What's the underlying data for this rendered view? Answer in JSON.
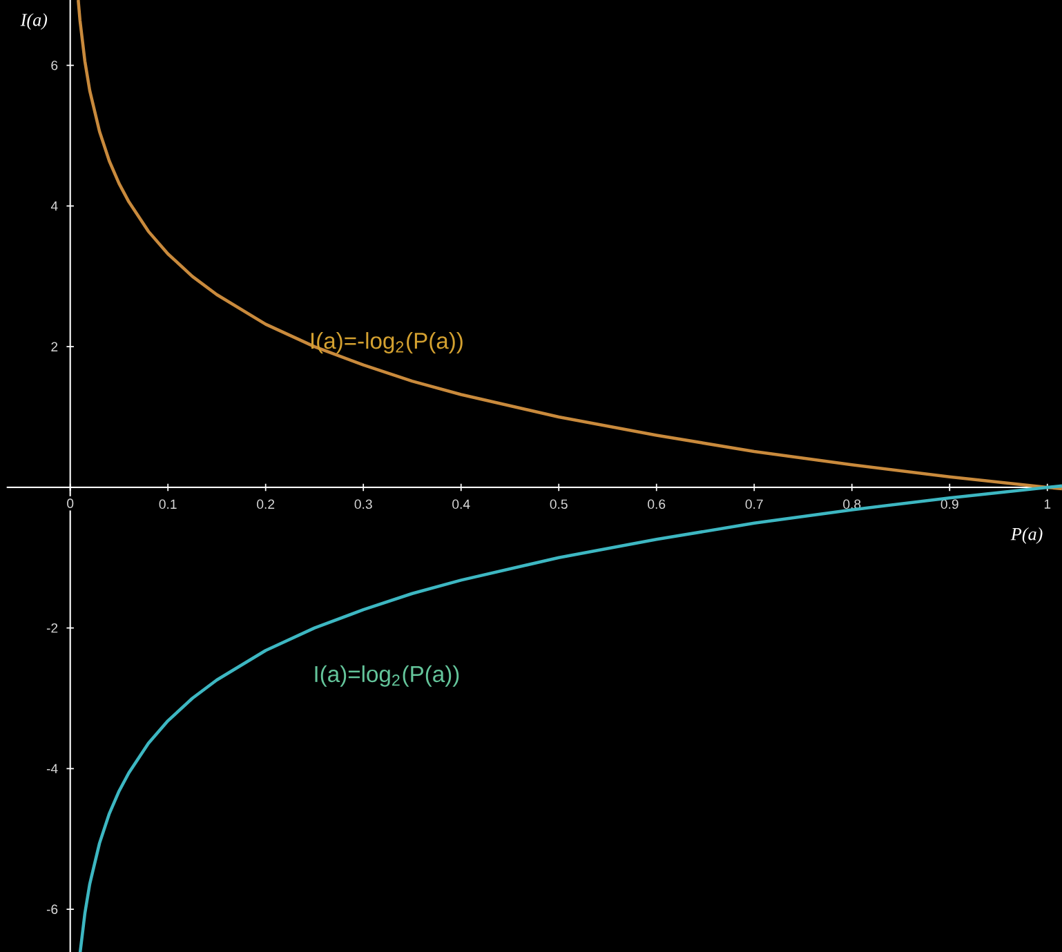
{
  "chart_data": {
    "type": "line",
    "xlabel": "P(a)",
    "ylabel": "I(a)",
    "xlim": [
      -0.065,
      1.015
    ],
    "ylim": [
      -6.61,
      6.93
    ],
    "xticks": [
      0,
      0.1,
      0.2,
      0.3,
      0.4,
      0.5,
      0.6,
      0.7,
      0.8,
      0.9,
      1
    ],
    "yticks": [
      -6,
      -4,
      -2,
      2,
      4,
      6
    ],
    "series": [
      {
        "color": "#c98a3c",
        "x": [
          0.0082,
          0.01,
          0.015,
          0.02,
          0.03,
          0.04,
          0.05,
          0.06,
          0.08,
          0.1,
          0.125,
          0.15,
          0.2,
          0.25,
          0.3,
          0.35,
          0.4,
          0.5,
          0.6,
          0.7,
          0.8,
          0.9,
          1,
          1.015
        ],
        "values": [
          6.93,
          6.64,
          6.06,
          5.64,
          5.06,
          4.64,
          4.32,
          4.06,
          3.64,
          3.32,
          3,
          2.74,
          2.32,
          2,
          1.74,
          1.51,
          1.32,
          1,
          0.74,
          0.51,
          0.32,
          0.15,
          0,
          -0.02
        ]
      },
      {
        "color": "#3db7c2",
        "x": [
          0.0102,
          0.015,
          0.02,
          0.03,
          0.04,
          0.05,
          0.06,
          0.08,
          0.1,
          0.125,
          0.15,
          0.2,
          0.25,
          0.3,
          0.35,
          0.4,
          0.5,
          0.6,
          0.7,
          0.8,
          0.9,
          1,
          1.015
        ],
        "values": [
          -6.61,
          -6.06,
          -5.64,
          -5.06,
          -4.64,
          -4.32,
          -4.06,
          -3.64,
          -3.32,
          -3,
          -2.74,
          -2.32,
          -2,
          -1.74,
          -1.51,
          -1.32,
          -1,
          -0.74,
          -0.51,
          -0.32,
          -0.15,
          0,
          0.02
        ]
      }
    ],
    "annotations": [
      "I(a)=-log$_{2}$(P(a))",
      "I(a)=log$_{2}$(P(a))"
    ]
  }
}
